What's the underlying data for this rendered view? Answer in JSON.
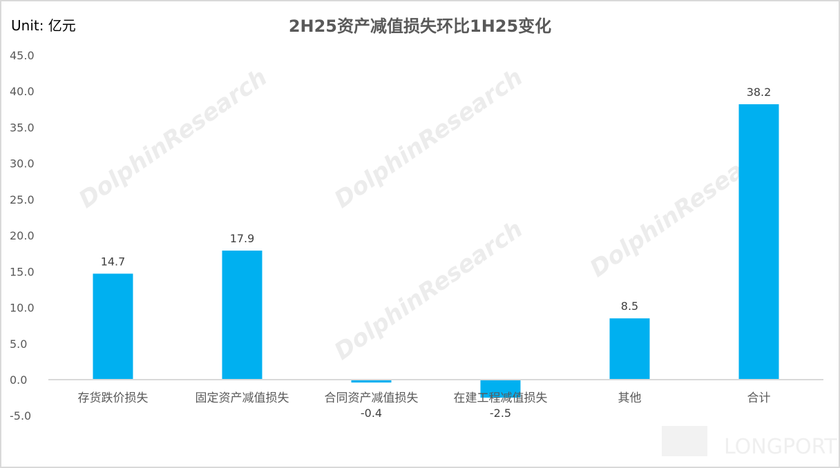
{
  "chart_data": {
    "type": "bar",
    "title": "2H25资产减值损失环比1H25变化",
    "unit_label": "Unit: 亿元",
    "categories": [
      "存货跌价损失",
      "固定资产减值损失",
      "合同资产减值损失",
      "在建工程减值损失",
      "其他",
      "合计"
    ],
    "values": [
      14.7,
      17.9,
      -0.4,
      -2.5,
      8.5,
      38.2
    ],
    "data_labels": [
      "14.7",
      "17.9",
      "-0.4",
      "-2.5",
      "8.5",
      "38.2"
    ],
    "ylim": [
      -5,
      45
    ],
    "yticks": [
      "-5.0",
      "0.0",
      "5.0",
      "10.0",
      "15.0",
      "20.0",
      "25.0",
      "30.0",
      "35.0",
      "40.0",
      "45.0"
    ],
    "grid": false,
    "legend": "none",
    "bar_color": "#00b0f0"
  },
  "watermarks": {
    "text": "DolphinResearch",
    "brand": "LONGPORT"
  }
}
